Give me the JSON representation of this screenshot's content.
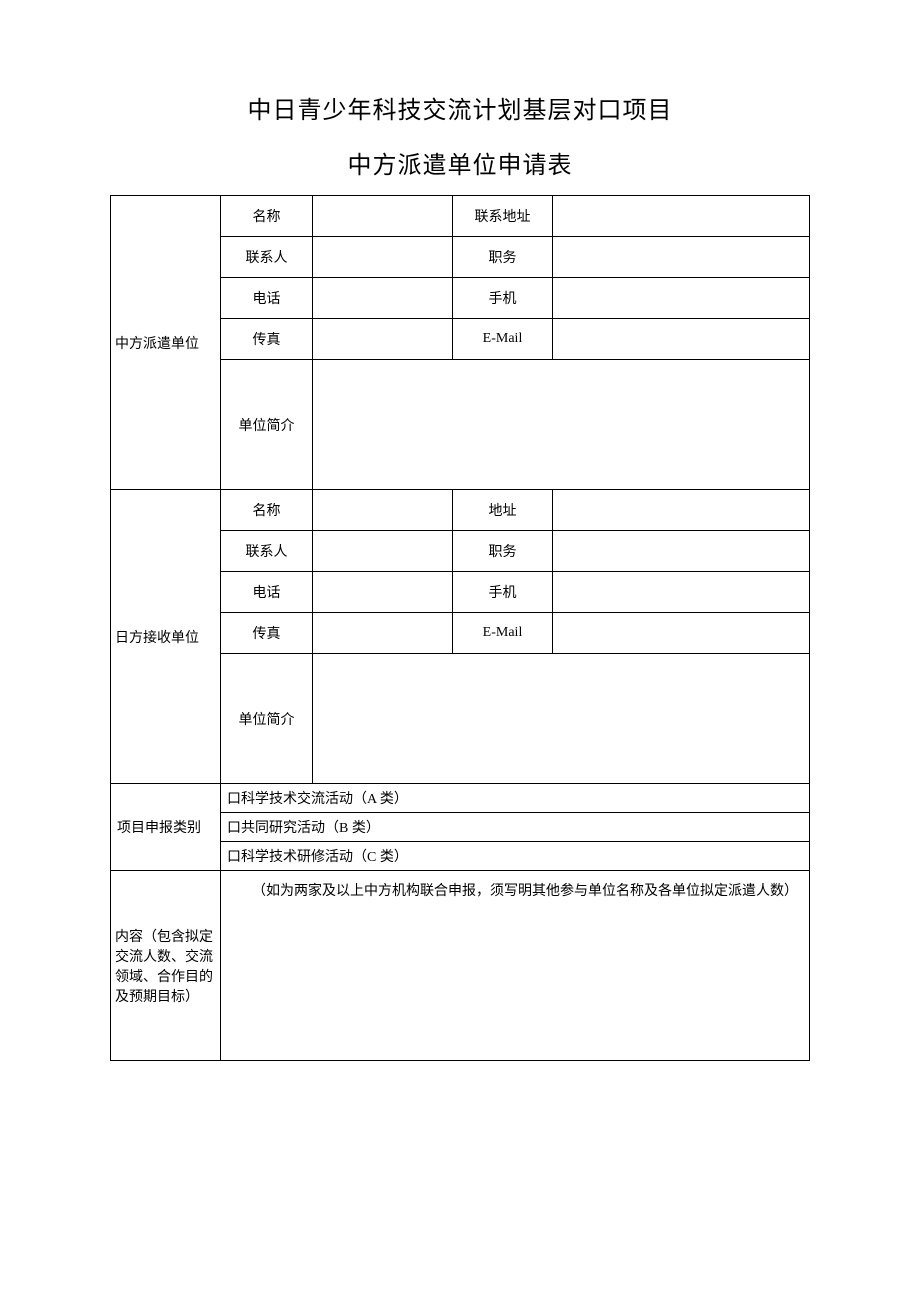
{
  "document": {
    "title_line1": "中日青少年科技交流计划基层对口项目",
    "title_line2": "中方派遣单位申请表"
  },
  "chinese_unit": {
    "section_label": "中方派遣单位",
    "rows": {
      "name_label": "名称",
      "name_value": "",
      "address_label": "联系地址",
      "address_value": "",
      "contact_label": "联系人",
      "contact_value": "",
      "position_label": "职务",
      "position_value": "",
      "phone_label": "电话",
      "phone_value": "",
      "mobile_label": "手机",
      "mobile_value": "",
      "fax_label": "传真",
      "fax_value": "",
      "email_label": "E-Mail",
      "email_value": "",
      "intro_label": "单位简介",
      "intro_value": ""
    }
  },
  "japanese_unit": {
    "section_label": "日方接收单位",
    "rows": {
      "name_label": "名称",
      "name_value": "",
      "address_label": "地址",
      "address_value": "",
      "contact_label": "联系人",
      "contact_value": "",
      "position_label": "职务",
      "position_value": "",
      "phone_label": "电话",
      "phone_value": "",
      "mobile_label": "手机",
      "mobile_value": "",
      "fax_label": "传真",
      "fax_value": "",
      "email_label": "E-Mail",
      "email_value": "",
      "intro_label": "单位简介",
      "intro_value": ""
    }
  },
  "category": {
    "section_label": "项目申报类别",
    "option_a": "口科学技术交流活动（A 类）",
    "option_b": "口共同研究活动（B 类）",
    "option_c": "口科学技术研修活动（C 类）"
  },
  "content": {
    "section_label": "内容（包含拟定交流人数、交流领域、合作目的及预期目标）",
    "note": "（如为两家及以上中方机构联合申报，须写明其他参与单位名称及各单位拟定派遣人数）"
  },
  "styling": {
    "page_background": "#ffffff",
    "border_color": "#000000",
    "title_fontsize": 24,
    "cell_fontsize": 14,
    "font_family": "SimSun"
  }
}
